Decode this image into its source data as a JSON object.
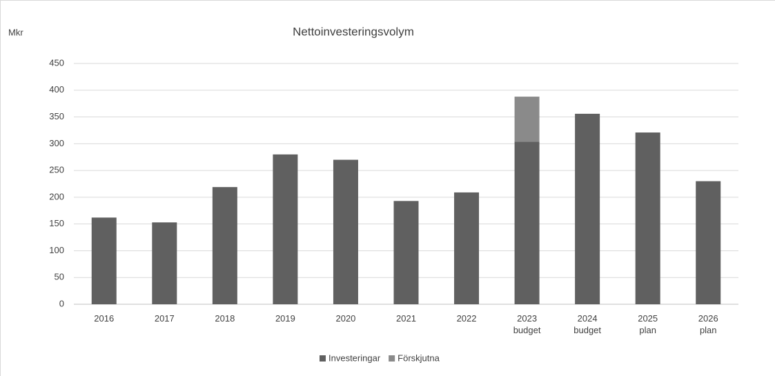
{
  "chart_data": {
    "type": "stacked_bar",
    "title": "Nettoinvesteringsvolym",
    "y_label": "Mkr",
    "categories": [
      [
        "2016"
      ],
      [
        "2017"
      ],
      [
        "2018"
      ],
      [
        "2019"
      ],
      [
        "2020"
      ],
      [
        "2021"
      ],
      [
        "2022"
      ],
      [
        "2023",
        "budget"
      ],
      [
        "2024",
        "budget"
      ],
      [
        "2025",
        "plan"
      ],
      [
        "2026",
        "plan"
      ]
    ],
    "series": [
      {
        "name": "Investeringar",
        "color": "#606060",
        "values": [
          162,
          153,
          219,
          280,
          270,
          193,
          209,
          304,
          356,
          321,
          230
        ]
      },
      {
        "name": "Förskjutna",
        "color": "#8a8a8a",
        "values": [
          0,
          0,
          0,
          0,
          0,
          0,
          0,
          84,
          0,
          0,
          0
        ]
      }
    ],
    "ylim": [
      0,
      450
    ],
    "yticks": [
      0,
      50,
      100,
      150,
      200,
      250,
      300,
      350,
      400,
      450
    ],
    "grid": true,
    "legend": "bottom"
  }
}
